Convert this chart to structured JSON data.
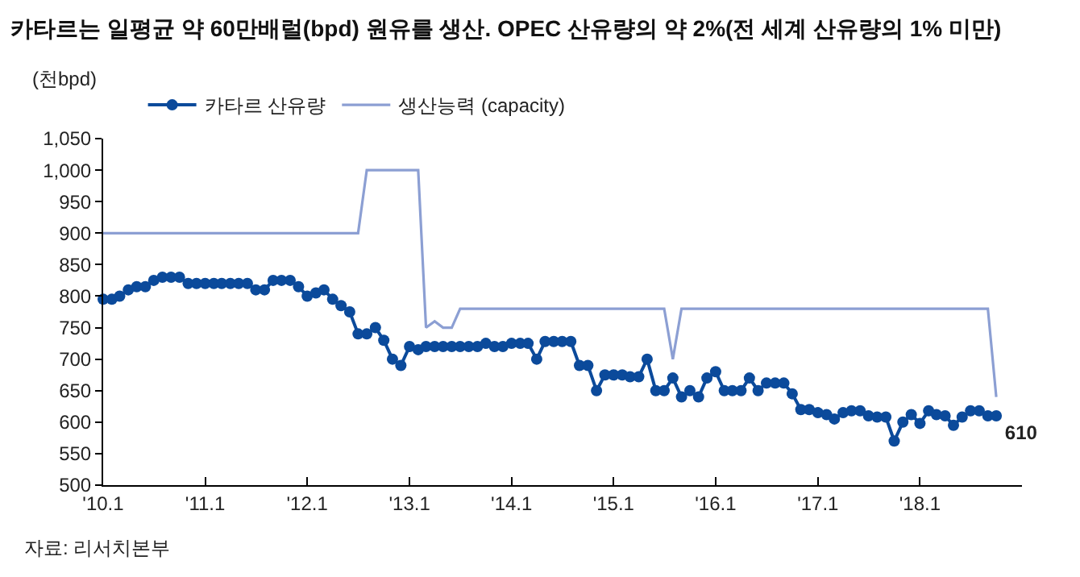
{
  "chart_data": {
    "type": "line",
    "title": "카타르는 일평균 약 60만배럴(bpd) 원유를 생산. OPEC 산유량의 약 2%(전 세계 산유량의 1% 미만)",
    "ylabel": "(천bpd)",
    "annotations": [
      "자료: 리서치본부"
    ],
    "x": [
      "2010-01",
      "2010-02",
      "2010-03",
      "2010-04",
      "2010-05",
      "2010-06",
      "2010-07",
      "2010-08",
      "2010-09",
      "2010-10",
      "2010-11",
      "2010-12",
      "2011-01",
      "2011-02",
      "2011-03",
      "2011-04",
      "2011-05",
      "2011-06",
      "2011-07",
      "2011-08",
      "2011-09",
      "2011-10",
      "2011-11",
      "2011-12",
      "2012-01",
      "2012-02",
      "2012-03",
      "2012-04",
      "2012-05",
      "2012-06",
      "2012-07",
      "2012-08",
      "2012-09",
      "2012-10",
      "2012-11",
      "2012-12",
      "2013-01",
      "2013-02",
      "2013-03",
      "2013-04",
      "2013-05",
      "2013-06",
      "2013-07",
      "2013-08",
      "2013-09",
      "2013-10",
      "2013-11",
      "2013-12",
      "2014-01",
      "2014-02",
      "2014-03",
      "2014-04",
      "2014-05",
      "2014-06",
      "2014-07",
      "2014-08",
      "2014-09",
      "2014-10",
      "2014-11",
      "2014-12",
      "2015-01",
      "2015-02",
      "2015-03",
      "2015-04",
      "2015-05",
      "2015-06",
      "2015-07",
      "2015-08",
      "2015-09",
      "2015-10",
      "2015-11",
      "2015-12",
      "2016-01",
      "2016-02",
      "2016-03",
      "2016-04",
      "2016-05",
      "2016-06",
      "2016-07",
      "2016-08",
      "2016-09",
      "2016-10",
      "2016-11",
      "2016-12",
      "2017-01",
      "2017-02",
      "2017-03",
      "2017-04",
      "2017-05",
      "2017-06",
      "2017-07",
      "2017-08",
      "2017-09",
      "2017-10",
      "2017-11",
      "2017-12",
      "2018-01",
      "2018-02",
      "2018-03",
      "2018-04",
      "2018-05",
      "2018-06",
      "2018-07",
      "2018-08",
      "2018-09",
      "2018-10"
    ],
    "series": [
      {
        "name": "카타르 산유량",
        "color": "#0b4a9b",
        "marker": "circle",
        "values": [
          795,
          795,
          800,
          810,
          815,
          815,
          825,
          830,
          830,
          830,
          820,
          820,
          820,
          820,
          820,
          820,
          820,
          820,
          810,
          810,
          825,
          825,
          825,
          815,
          800,
          805,
          810,
          795,
          785,
          775,
          740,
          740,
          750,
          730,
          700,
          690,
          720,
          715,
          720,
          720,
          720,
          720,
          720,
          720,
          720,
          725,
          720,
          720,
          725,
          725,
          725,
          700,
          728,
          728,
          728,
          728,
          690,
          690,
          650,
          675,
          675,
          675,
          672,
          672,
          700,
          650,
          650,
          670,
          640,
          650,
          640,
          670,
          680,
          650,
          650,
          650,
          670,
          650,
          662,
          662,
          662,
          645,
          620,
          620,
          615,
          612,
          605,
          615,
          618,
          618,
          610,
          608,
          608,
          570,
          600,
          612,
          598,
          618,
          612,
          610,
          595,
          608,
          618,
          618,
          610,
          610
        ],
        "value_labels": [
          null,
          null,
          null,
          null,
          null,
          null,
          null,
          null,
          null,
          null,
          null,
          null,
          null,
          null,
          null,
          null,
          null,
          null,
          null,
          null,
          null,
          null,
          null,
          null,
          null,
          null,
          null,
          null,
          null,
          null,
          null,
          null,
          null,
          null,
          null,
          null,
          null,
          null,
          null,
          null,
          null,
          null,
          null,
          null,
          null,
          null,
          null,
          null,
          null,
          null,
          null,
          null,
          null,
          null,
          null,
          null,
          null,
          null,
          null,
          null,
          null,
          null,
          null,
          null,
          null,
          null,
          null,
          null,
          null,
          null,
          null,
          null,
          null,
          null,
          null,
          null,
          null,
          null,
          null,
          null,
          null,
          null,
          null,
          null,
          null,
          null,
          null,
          null,
          null,
          null,
          null,
          null,
          null,
          null,
          null,
          null,
          null,
          null,
          null,
          null,
          null,
          null,
          null,
          null,
          null,
          "610"
        ]
      },
      {
        "name": "생산능력 (capacity)",
        "color": "#8c9fd3",
        "marker": "none",
        "x": [
          "2010-01",
          "2012-07",
          "2012-08",
          "2013-02",
          "2013-03",
          "2013-04",
          "2013-05",
          "2013-06",
          "2013-07",
          "2015-07",
          "2015-08",
          "2015-09",
          "2018-09",
          "2018-10"
        ],
        "values": [
          900,
          900,
          1000,
          1000,
          750,
          760,
          750,
          750,
          780,
          780,
          700,
          780,
          780,
          640
        ]
      }
    ],
    "xlim": [
      "2010-01",
      "2019-01"
    ],
    "xticks": [
      {
        "value": "2010-01",
        "label": "'10.1"
      },
      {
        "value": "2011-01",
        "label": "'11.1"
      },
      {
        "value": "2012-01",
        "label": "'12.1"
      },
      {
        "value": "2013-01",
        "label": "'13.1"
      },
      {
        "value": "2014-01",
        "label": "'14.1"
      },
      {
        "value": "2015-01",
        "label": "'15.1"
      },
      {
        "value": "2016-01",
        "label": "'16.1"
      },
      {
        "value": "2017-01",
        "label": "'17.1"
      },
      {
        "value": "2018-01",
        "label": "'18.1"
      }
    ],
    "ylim": [
      500,
      1050
    ],
    "yticks": [
      500,
      550,
      600,
      650,
      700,
      750,
      800,
      850,
      900,
      950,
      {
        "value": 1000,
        "label": "1,000"
      },
      {
        "value": 1050,
        "label": "1,050"
      }
    ],
    "legend": "top left",
    "grid": false
  }
}
